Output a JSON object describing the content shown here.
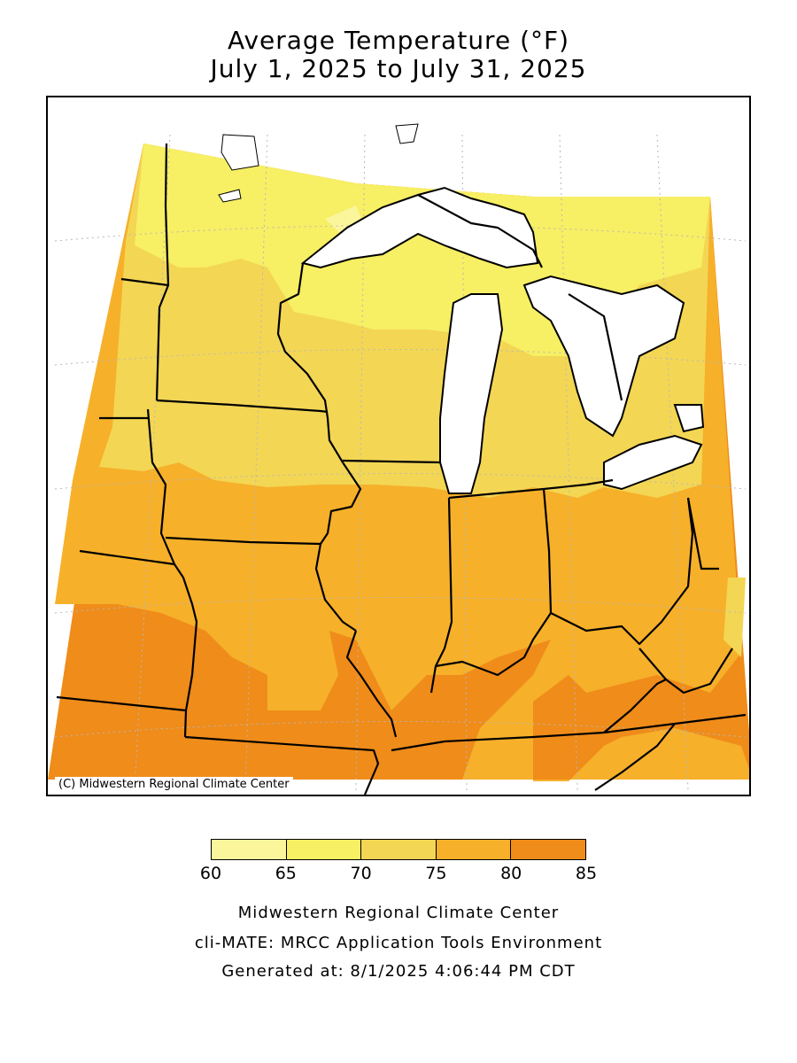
{
  "title": {
    "line1": "Average Temperature (°F)",
    "line2": "July 1, 2025 to July 31, 2025"
  },
  "map": {
    "copyright": "(C) Midwestern Regional Climate Center",
    "lake_color": "#ffffff",
    "border_color": "#000000",
    "grid_color": "#b8b8b8"
  },
  "legend": {
    "ticks": [
      "60",
      "65",
      "70",
      "75",
      "80",
      "85"
    ],
    "bins": [
      {
        "range": "60-65",
        "color": "#fbf59b"
      },
      {
        "range": "65-70",
        "color": "#f7ef64"
      },
      {
        "range": "70-75",
        "color": "#f3d654"
      },
      {
        "range": "75-80",
        "color": "#f6b02a"
      },
      {
        "range": "80-85",
        "color": "#ef8c1a"
      }
    ]
  },
  "footer": {
    "line1": "Midwestern Regional Climate Center",
    "line2": "cli-MATE: MRCC Application Tools Environment",
    "line3": "Generated at: 8/1/2025 4:06:44 PM CDT"
  }
}
